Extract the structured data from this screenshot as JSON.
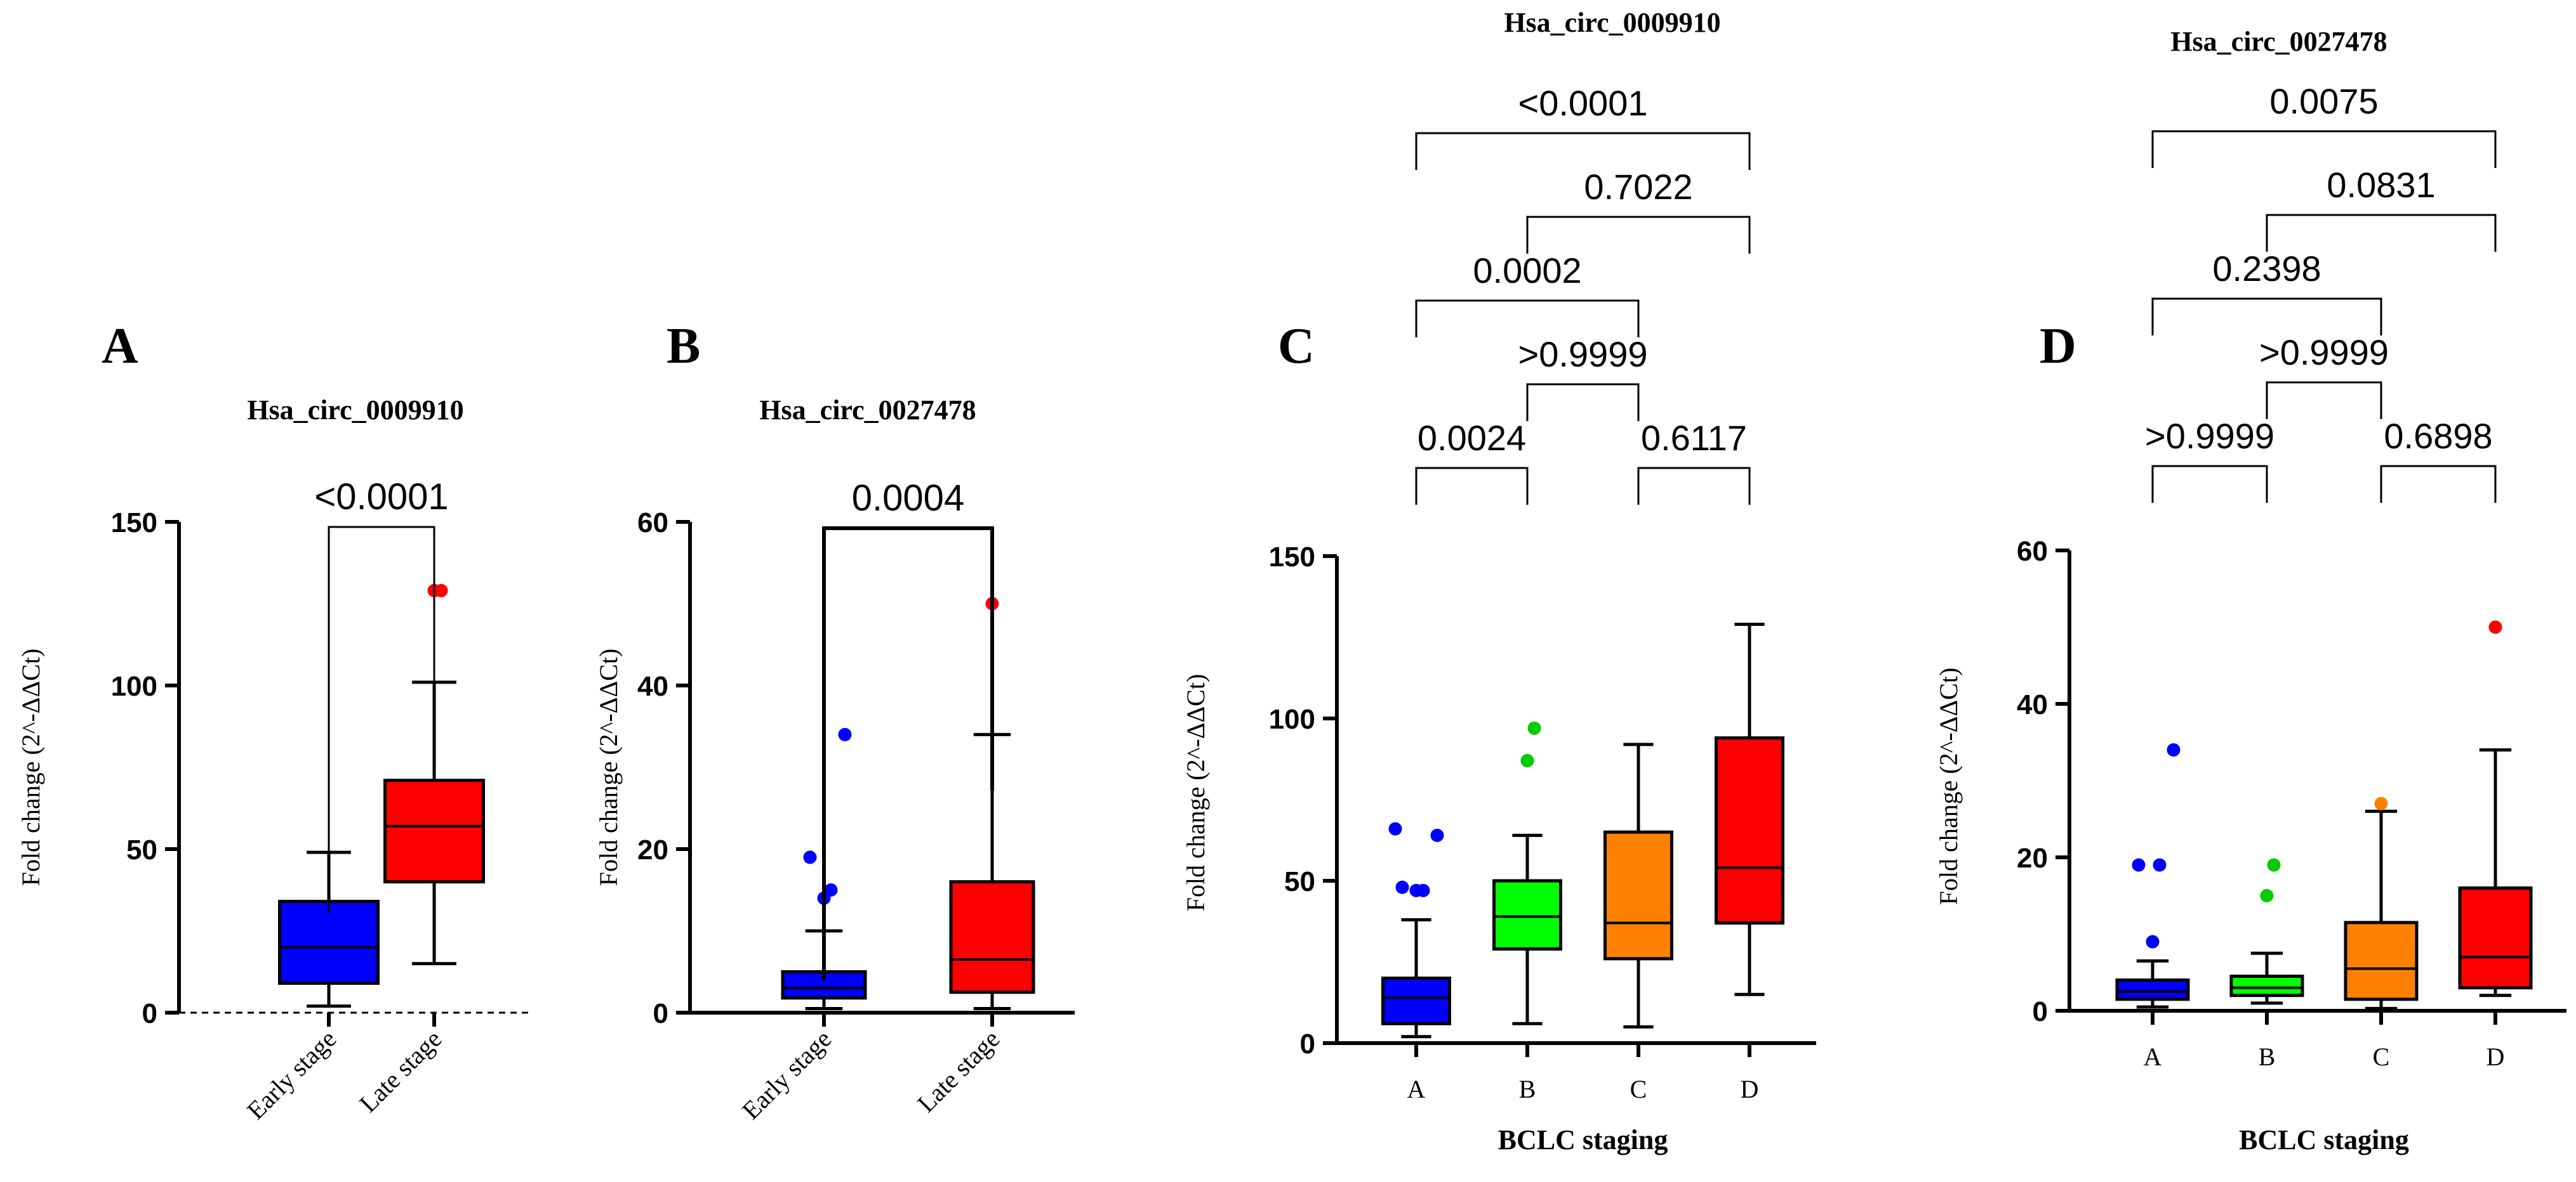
{
  "chart_data": [
    {
      "type": "box",
      "panel_letter": "A",
      "title": "Hsa_circ_0009910",
      "ylabel": "Fold change (2^-ΔΔCt)",
      "xlabel": "",
      "ylim": [
        0,
        150
      ],
      "yticks": [
        0,
        50,
        100,
        150
      ],
      "yticklabels": [
        "0",
        "50",
        "100",
        "150"
      ],
      "categories": [
        "Early stage",
        "Late stage"
      ],
      "boxes": [
        {
          "name": "Early stage",
          "color": "#0000ff",
          "whisker_low": 2,
          "q1": 9,
          "median": 20,
          "q3": 34,
          "whisker_high": 49,
          "outliers": []
        },
        {
          "name": "Late stage",
          "color": "#ff0000",
          "whisker_low": 15,
          "q1": 40,
          "median": 57,
          "q3": 71,
          "whisker_high": 101,
          "outliers": [
            129,
            129
          ]
        }
      ],
      "comparisons": [
        {
          "from": 0,
          "to": 1,
          "label": "<0.0001"
        }
      ]
    },
    {
      "type": "box",
      "panel_letter": "B",
      "title": "Hsa_circ_0027478",
      "ylabel": "Fold change (2^-ΔΔCt)",
      "xlabel": "",
      "ylim": [
        0,
        60
      ],
      "yticks": [
        0,
        20,
        40,
        60
      ],
      "yticklabels": [
        "0",
        "20",
        "40",
        "60"
      ],
      "categories": [
        "Early stage",
        "Late stage"
      ],
      "boxes": [
        {
          "name": "Early stage",
          "color": "#0000ff",
          "whisker_low": 0.5,
          "q1": 1.8,
          "median": 3,
          "q3": 5,
          "whisker_high": 10,
          "outliers": [
            14,
            15,
            19,
            34
          ]
        },
        {
          "name": "Late stage",
          "color": "#ff0000",
          "whisker_low": 0.5,
          "q1": 2.5,
          "median": 6.5,
          "q3": 16,
          "whisker_high": 34,
          "outliers": [
            50
          ]
        }
      ],
      "comparisons": [
        {
          "from": 0,
          "to": 1,
          "label": "0.0004"
        }
      ]
    },
    {
      "type": "box",
      "panel_letter": "C",
      "title": "Hsa_circ_0009910",
      "ylabel": "Fold change (2^-ΔΔCt)",
      "xlabel": "BCLC staging",
      "ylim": [
        0,
        150
      ],
      "yticks": [
        0,
        50,
        100,
        150
      ],
      "yticklabels": [
        "0",
        "50",
        "100",
        "150"
      ],
      "categories": [
        "A",
        "B",
        "C",
        "D"
      ],
      "boxes": [
        {
          "name": "A",
          "color": "#0000ff",
          "whisker_low": 2,
          "q1": 6,
          "median": 14,
          "q3": 20,
          "whisker_high": 38,
          "outliers": [
            47,
            47,
            48,
            64,
            66
          ]
        },
        {
          "name": "B",
          "color": "#00ff00",
          "whisker_low": 6,
          "q1": 29,
          "median": 39,
          "q3": 50,
          "whisker_high": 64,
          "outliers": [
            87,
            97
          ]
        },
        {
          "name": "C",
          "color": "#ff8000",
          "whisker_low": 5,
          "q1": 26,
          "median": 37,
          "q3": 65,
          "whisker_high": 92,
          "outliers": []
        },
        {
          "name": "D",
          "color": "#ff0000",
          "whisker_low": 15,
          "q1": 37,
          "median": 54,
          "q3": 94,
          "whisker_high": 129,
          "outliers": []
        }
      ],
      "comparisons": [
        {
          "from": 0,
          "to": 1,
          "label": "0.0024"
        },
        {
          "from": 2,
          "to": 3,
          "label": "0.6117"
        },
        {
          "from": 1,
          "to": 2,
          "label": ">0.9999"
        },
        {
          "from": 0,
          "to": 2,
          "label": "0.0002"
        },
        {
          "from": 1,
          "to": 3,
          "label": "0.7022"
        },
        {
          "from": 0,
          "to": 3,
          "label": "<0.0001"
        }
      ]
    },
    {
      "type": "box",
      "panel_letter": "D",
      "title": "Hsa_circ_0027478",
      "ylabel": "Fold change (2^-ΔΔCt)",
      "xlabel": "BCLC staging",
      "ylim": [
        0,
        60
      ],
      "yticks": [
        0,
        20,
        40,
        60
      ],
      "yticklabels": [
        "0",
        "20",
        "40",
        "60"
      ],
      "categories": [
        "A",
        "B",
        "C",
        "D"
      ],
      "boxes": [
        {
          "name": "A",
          "color": "#0000ff",
          "whisker_low": 0.5,
          "q1": 1.5,
          "median": 2.5,
          "q3": 4,
          "whisker_high": 6.5,
          "outliers": [
            9,
            19,
            19,
            34
          ]
        },
        {
          "name": "B",
          "color": "#00ff00",
          "whisker_low": 1,
          "q1": 2,
          "median": 3,
          "q3": 4.5,
          "whisker_high": 7.5,
          "outliers": [
            15,
            19
          ]
        },
        {
          "name": "C",
          "color": "#ff8000",
          "whisker_low": 0.3,
          "q1": 1.5,
          "median": 5.5,
          "q3": 11.5,
          "whisker_high": 26,
          "outliers": [
            27
          ]
        },
        {
          "name": "D",
          "color": "#ff0000",
          "whisker_low": 2,
          "q1": 3,
          "median": 7,
          "q3": 16,
          "whisker_high": 34,
          "outliers": [
            50
          ]
        }
      ],
      "comparisons": [
        {
          "from": 0,
          "to": 1,
          "label": ">0.9999"
        },
        {
          "from": 2,
          "to": 3,
          "label": "0.6898"
        },
        {
          "from": 1,
          "to": 2,
          "label": ">0.9999"
        },
        {
          "from": 0,
          "to": 2,
          "label": "0.2398"
        },
        {
          "from": 1,
          "to": 3,
          "label": "0.0831"
        },
        {
          "from": 0,
          "to": 3,
          "label": "0.0075"
        }
      ]
    }
  ]
}
